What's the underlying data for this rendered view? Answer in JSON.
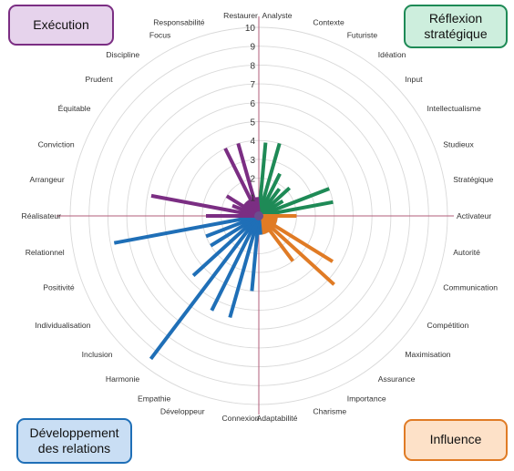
{
  "quadrants": {
    "execution": {
      "label": "Exécution",
      "color": "#7b2e83"
    },
    "reflexion": {
      "label": "Réflexion stratégique",
      "color": "#1e8a56"
    },
    "relations": {
      "label": "Développement des relations",
      "color": "#1f6fb7"
    },
    "influence": {
      "label": "Influence",
      "color": "#e07b25"
    }
  },
  "chart_data": {
    "type": "radar",
    "radial_ticks": [
      "1",
      "2",
      "3",
      "4",
      "5",
      "6",
      "7",
      "8",
      "9",
      "10"
    ],
    "rmax": 10,
    "grid": true,
    "axes": [
      {
        "label": "Analyste",
        "value": 3.9,
        "group": "reflexion"
      },
      {
        "label": "Contexte",
        "value": 4.0,
        "group": "reflexion"
      },
      {
        "label": "Futuriste",
        "value": 2.5,
        "group": "reflexion"
      },
      {
        "label": "Idéation",
        "value": 1.8,
        "group": "reflexion"
      },
      {
        "label": "Input",
        "value": 2.2,
        "group": "reflexion"
      },
      {
        "label": "Intellectualisme",
        "value": 1.5,
        "group": "reflexion"
      },
      {
        "label": "Studieux",
        "value": 4.0,
        "group": "reflexion"
      },
      {
        "label": "Stratégique",
        "value": 4.0,
        "group": "reflexion"
      },
      {
        "label": "Activateur",
        "value": 2.0,
        "group": "influence"
      },
      {
        "label": "Autorité",
        "value": 1.0,
        "group": "influence"
      },
      {
        "label": "Communication",
        "value": 1.0,
        "group": "influence"
      },
      {
        "label": "Compétition",
        "value": 4.6,
        "group": "influence"
      },
      {
        "label": "Maximisation",
        "value": 5.4,
        "group": "influence"
      },
      {
        "label": "Assurance",
        "value": 3.0,
        "group": "influence"
      },
      {
        "label": "Importance",
        "value": 1.0,
        "group": "influence"
      },
      {
        "label": "Charisme",
        "value": 1.0,
        "group": "influence"
      },
      {
        "label": "Adaptabilité",
        "value": 1.0,
        "group": "relations"
      },
      {
        "label": "Connexion",
        "value": 4.0,
        "group": "relations"
      },
      {
        "label": "Développeur",
        "value": 5.6,
        "group": "relations"
      },
      {
        "label": "Empathie",
        "value": 5.6,
        "group": "relations"
      },
      {
        "label": "Harmonie",
        "value": 9.5,
        "group": "relations"
      },
      {
        "label": "Inclusion",
        "value": 4.7,
        "group": "relations"
      },
      {
        "label": "Individualisation",
        "value": 3.0,
        "group": "relations"
      },
      {
        "label": "Positivité",
        "value": 3.0,
        "group": "relations"
      },
      {
        "label": "Relationnel",
        "value": 7.8,
        "group": "relations"
      },
      {
        "label": "Réalisateur",
        "value": 2.8,
        "group": "execution"
      },
      {
        "label": "Arrangeur",
        "value": 5.8,
        "group": "execution"
      },
      {
        "label": "Conviction",
        "value": 1.5,
        "group": "execution"
      },
      {
        "label": "Équitable",
        "value": 2.0,
        "group": "execution"
      },
      {
        "label": "Prudent",
        "value": 1.0,
        "group": "execution"
      },
      {
        "label": "Discipline",
        "value": 1.0,
        "group": "execution"
      },
      {
        "label": "Focus",
        "value": 4.0,
        "group": "execution"
      },
      {
        "label": "Responsabilité",
        "value": 4.0,
        "group": "execution"
      },
      {
        "label": "Restaurer",
        "value": 1.0,
        "group": "execution"
      }
    ]
  }
}
